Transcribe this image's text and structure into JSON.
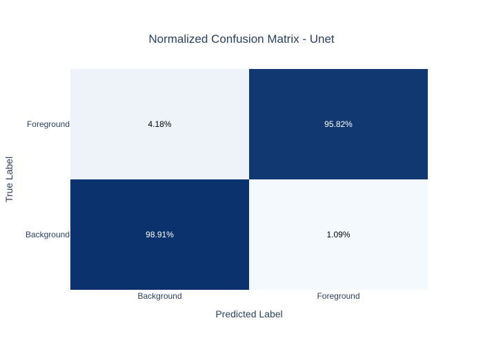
{
  "chart_data": {
    "type": "heatmap",
    "title": "Normalized Confusion Matrix - Unet",
    "xlabel": "Predicted Label",
    "ylabel": "True Label",
    "x_categories": [
      "Background",
      "Foreground"
    ],
    "y_categories": [
      "Background",
      "Foreground"
    ],
    "values": [
      [
        98.91,
        1.09
      ],
      [
        4.18,
        95.82
      ]
    ],
    "cell_labels": [
      [
        "98.91%",
        "1.09%"
      ],
      [
        "4.18%",
        "95.82%"
      ]
    ],
    "zlim": [
      0,
      100
    ],
    "colorscale": {
      "low": "#f7fbff",
      "high": "#08306b"
    },
    "legend": "none",
    "grid": false
  }
}
